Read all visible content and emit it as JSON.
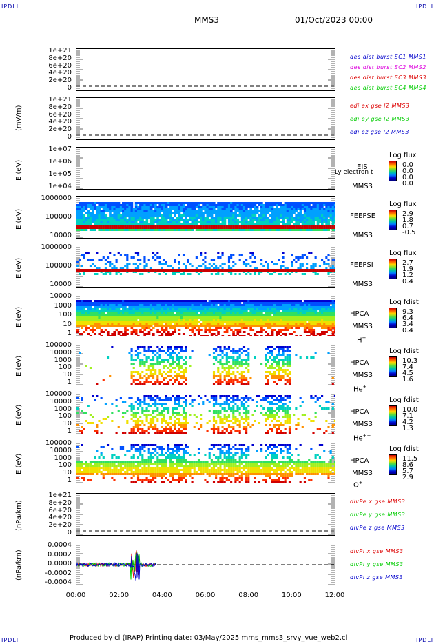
{
  "corner_labels": {
    "tl": "IPDLI",
    "tr": "IPDLI",
    "bl": "IPDLI",
    "br": "IPDLI"
  },
  "header": {
    "spacecraft": "MMS3",
    "datetime": "01/Oct/2023 00:00"
  },
  "footer": "Produced by cl (IRAP)    Printing date: 03/May/2025    mms_mms3_srvy_vue_web2.cl",
  "colors": {
    "red": "#dd0000",
    "green": "#00cc00",
    "blue": "#0000cc",
    "magenta": "#dd00dd",
    "orange": "#ff6600"
  },
  "chart_data": [
    {
      "type": "line",
      "ylabel": "",
      "yticks": [
        "1e+21",
        "8e+20",
        "6e+20",
        "4e+20",
        "2e+20",
        "0"
      ],
      "legend": [
        "des dist burst SC1 MMS1",
        "des dist burst SC2 MMS2",
        "des dist burst SC3 MMS3",
        "des dist burst SC4 MMS4"
      ]
    },
    {
      "type": "line",
      "ylabel": "(mV/m)",
      "yticks": [
        "1e+21",
        "8e+20",
        "6e+20",
        "4e+20",
        "2e+20",
        "0"
      ],
      "legend": [
        "edi ex gse l2 MMS3",
        "edi ey gse l2 MMS3",
        "edi ez gse l2 MMS3"
      ]
    },
    {
      "type": "heatmap",
      "ylabel": "E (eV)",
      "yticks": [
        "1e+07",
        "1e+06",
        "1e+05",
        "1e+04"
      ],
      "instrument": "EIS",
      "sub_label": "MMS3",
      "overlay_text": "Ly electron t",
      "cb_title": "Log flux",
      "cb_values": [
        "0.0",
        "0.0",
        "0.0",
        "0.0"
      ]
    },
    {
      "type": "heatmap",
      "ylabel": "E (eV)",
      "yticks": [
        "1000000",
        "100000",
        "10000"
      ],
      "instrument": "FEEPSE",
      "sub_label": "MMS3",
      "cb_title": "Log flux",
      "cb_values": [
        "2.9",
        "1.8",
        "0.7",
        "-0.5"
      ]
    },
    {
      "type": "heatmap",
      "ylabel": "E (eV)",
      "yticks": [
        "1000000",
        "100000",
        "10000"
      ],
      "instrument": "FEEPSI",
      "sub_label": "MMS3",
      "cb_title": "Log flux",
      "cb_values": [
        "2.7",
        "1.9",
        "1.2",
        "0.4"
      ]
    },
    {
      "type": "heatmap",
      "ylabel": "E (eV)",
      "yticks": [
        "10000",
        "1000",
        "100",
        "10",
        "1"
      ],
      "instrument": "HPCA",
      "sub_label": "MMS3",
      "species": "H",
      "species_sup": "+",
      "cb_title": "Log fdist",
      "cb_values": [
        "9.3",
        "6.4",
        "3.4",
        "0.4"
      ]
    },
    {
      "type": "heatmap",
      "ylabel": "E (eV)",
      "yticks": [
        "100000",
        "10000",
        "1000",
        "100",
        "10",
        "1"
      ],
      "instrument": "HPCA",
      "sub_label": "MMS3",
      "species": "He",
      "species_sup": "+",
      "cb_title": "Log fdist",
      "cb_values": [
        "10.3",
        "7.4",
        "4.5",
        "1.6"
      ]
    },
    {
      "type": "heatmap",
      "ylabel": "E (eV)",
      "yticks": [
        "100000",
        "10000",
        "1000",
        "100",
        "10",
        "1"
      ],
      "instrument": "HPCA",
      "sub_label": "MMS3",
      "species": "He",
      "species_sup": "++",
      "cb_title": "Log fdist",
      "cb_values": [
        "10.0",
        "7.1",
        "4.2",
        "1.3"
      ]
    },
    {
      "type": "heatmap",
      "ylabel": "E (eV)",
      "yticks": [
        "100000",
        "10000",
        "1000",
        "100",
        "10",
        "1"
      ],
      "instrument": "HPCA",
      "sub_label": "MMS3",
      "species": "O",
      "species_sup": "+",
      "cb_title": "Log fdist",
      "cb_values": [
        "11.5",
        "8.6",
        "5.7",
        "2.9"
      ]
    },
    {
      "type": "line",
      "ylabel": "(nPa/km)",
      "yticks": [
        "1e+21",
        "8e+20",
        "6e+20",
        "4e+20",
        "2e+20",
        "0"
      ],
      "legend": [
        "divPe x gse MMS3",
        "divPe y gse MMS3",
        "divPe z gse MMS3"
      ]
    },
    {
      "type": "line",
      "ylabel": "(nPa/km)",
      "yticks": [
        "0.0004",
        "0.0002",
        "0.0000",
        "-0.0002",
        "-0.0004"
      ],
      "legend": [
        "divPi x gse MMS3",
        "divPi y gse MMS3",
        "divPi z gse MMS3"
      ],
      "ylim": [
        -0.0005,
        0.0005
      ]
    }
  ],
  "xaxis": {
    "ticks": [
      "00:00",
      "02:00",
      "04:00",
      "06:00",
      "08:00",
      "10:00",
      "12:00"
    ]
  }
}
